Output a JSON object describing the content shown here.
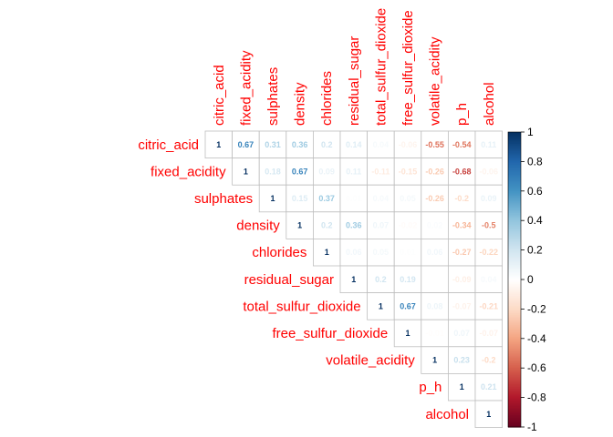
{
  "chart_data": {
    "type": "heatmap",
    "variables": [
      "citric_acid",
      "fixed_acidity",
      "sulphates",
      "density",
      "chlorides",
      "residual_sugar",
      "total_sulfur_dioxide",
      "free_sulfur_dioxide",
      "volatile_acidity",
      "p_h",
      "alcohol"
    ],
    "matrix": [
      [
        1,
        0.67,
        0.31,
        0.36,
        0.2,
        0.14,
        0.04,
        -0.06,
        -0.55,
        -0.54,
        0.11
      ],
      [
        0.67,
        1,
        0.18,
        0.67,
        0.09,
        0.11,
        -0.11,
        -0.15,
        -0.26,
        -0.68,
        -0.06
      ],
      [
        0.31,
        0.18,
        1,
        0.15,
        0.37,
        0.01,
        0.04,
        0.05,
        -0.26,
        -0.2,
        0.09
      ],
      [
        0.36,
        0.67,
        0.15,
        1,
        0.2,
        0.36,
        0.07,
        -0.02,
        0.02,
        -0.34,
        -0.5
      ],
      [
        0.2,
        0.09,
        0.37,
        0.2,
        1,
        0.06,
        0.05,
        0.01,
        0.06,
        -0.27,
        -0.22
      ],
      [
        0.14,
        0.11,
        0.01,
        0.36,
        0.06,
        1,
        0.2,
        0.19,
        0,
        -0.09,
        0.04
      ],
      [
        0.04,
        -0.11,
        0.04,
        0.07,
        0.05,
        0.2,
        1,
        0.67,
        0.08,
        -0.07,
        -0.21
      ],
      [
        -0.06,
        -0.15,
        0.05,
        -0.02,
        0.01,
        0.19,
        0.67,
        1,
        -0.01,
        0.07,
        -0.07
      ],
      [
        -0.55,
        -0.26,
        -0.26,
        0.02,
        0.06,
        0,
        0.08,
        -0.01,
        1,
        0.23,
        -0.2
      ],
      [
        -0.54,
        -0.68,
        -0.2,
        -0.34,
        -0.27,
        -0.09,
        -0.07,
        0.07,
        0.23,
        1,
        0.21
      ],
      [
        0.11,
        -0.06,
        0.09,
        -0.5,
        -0.22,
        0.04,
        -0.21,
        -0.07,
        -0.2,
        0.21,
        1
      ]
    ],
    "display": "upper-triangle",
    "color_scale": {
      "min": -1,
      "max": 1,
      "low_color": "#67001F",
      "mid_color": "#FFFFFF",
      "high_color": "#053061"
    },
    "colorbar_ticks": [
      "1",
      "0.8",
      "0.6",
      "0.4",
      "0.2",
      "0",
      "-0.2",
      "-0.4",
      "-0.6",
      "-0.8",
      "-1"
    ],
    "label_color": "#ff0000"
  }
}
